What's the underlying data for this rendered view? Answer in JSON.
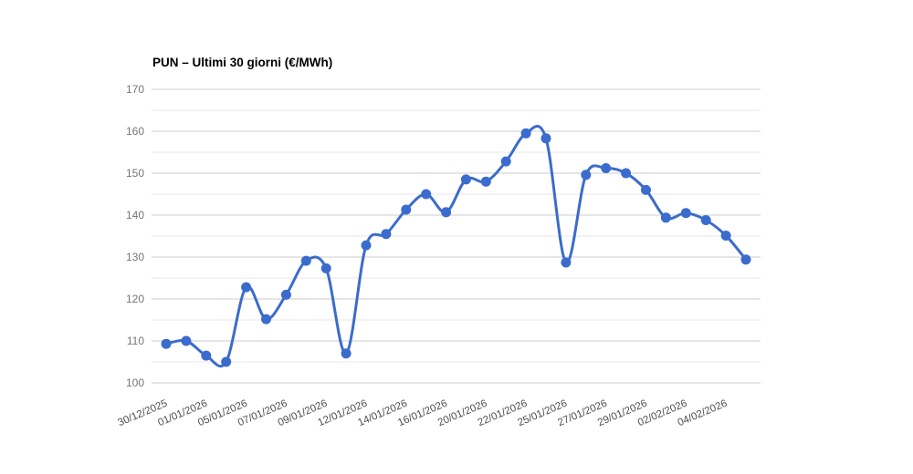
{
  "page": {
    "background": "#ffffff"
  },
  "chart_data": {
    "type": "line",
    "title": "PUN – Ultimi 30 giorni (€/MWh)",
    "unit": "€/MWh",
    "smooth": true,
    "point_markers": true,
    "legend_position": "none",
    "grid_on": true,
    "n_points": 30,
    "series": [
      {
        "name": "PUN",
        "color": "#3b6ccd",
        "values": [
          109.3,
          110.0,
          106.5,
          105.0,
          122.8,
          115.2,
          121.0,
          129.1,
          127.3,
          107.0,
          132.8,
          135.5,
          141.3,
          145.0,
          140.7,
          148.5,
          148.0,
          152.8,
          159.5,
          158.3,
          128.7,
          149.6,
          151.2,
          150.0,
          146.0,
          139.4,
          140.5,
          138.8,
          135.1,
          129.4
        ]
      }
    ],
    "x_tick_labels": [
      "30/12/2025",
      "01/01/2026",
      "05/01/2026",
      "07/01/2026",
      "09/01/2026",
      "12/01/2026",
      "14/01/2026",
      "16/01/2026",
      "20/01/2026",
      "22/01/2026",
      "25/01/2026",
      "27/01/2026",
      "29/01/2026",
      "02/02/2026",
      "04/02/2026"
    ],
    "x_tick_every": 2,
    "x_label_rotation_deg": -23,
    "ylim": [
      100,
      170
    ],
    "y_major_ticks": [
      100,
      110,
      120,
      130,
      140,
      150,
      160,
      170
    ],
    "y_minor_step": 5,
    "xlabel": "",
    "ylabel": "",
    "colors": {
      "line": "#3b6ccd",
      "grid_major": "#cccccc",
      "grid_minor": "#e7e7e7",
      "y_label": "#757575",
      "x_label": "#4d4d4d",
      "title": "#000000"
    }
  }
}
